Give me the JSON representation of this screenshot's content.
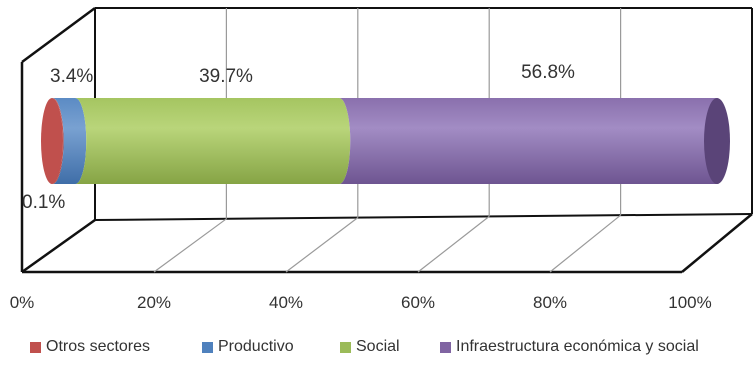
{
  "chart_data": {
    "type": "bar",
    "orientation": "horizontal",
    "stacked": true,
    "percent_stacked": true,
    "style": "3d-cylinder",
    "title": "",
    "xlabel": "",
    "ylabel": "",
    "xlim": [
      0,
      100
    ],
    "ticks": [
      "0%",
      "20%",
      "40%",
      "60%",
      "80%",
      "100%"
    ],
    "grid": true,
    "legend_position": "bottom",
    "series": [
      {
        "name": "Otros sectores",
        "value": 0.1,
        "label": "0.1%",
        "color": "#c0504d"
      },
      {
        "name": "Productivo",
        "value": 3.4,
        "label": "3.4%",
        "color": "#4f81bd"
      },
      {
        "name": "Social",
        "value": 39.7,
        "label": "39.7%",
        "color": "#9bbb59"
      },
      {
        "name": "Infraestructura económica y social",
        "value": 56.8,
        "label": "56.8%",
        "color": "#8064a2"
      }
    ]
  }
}
